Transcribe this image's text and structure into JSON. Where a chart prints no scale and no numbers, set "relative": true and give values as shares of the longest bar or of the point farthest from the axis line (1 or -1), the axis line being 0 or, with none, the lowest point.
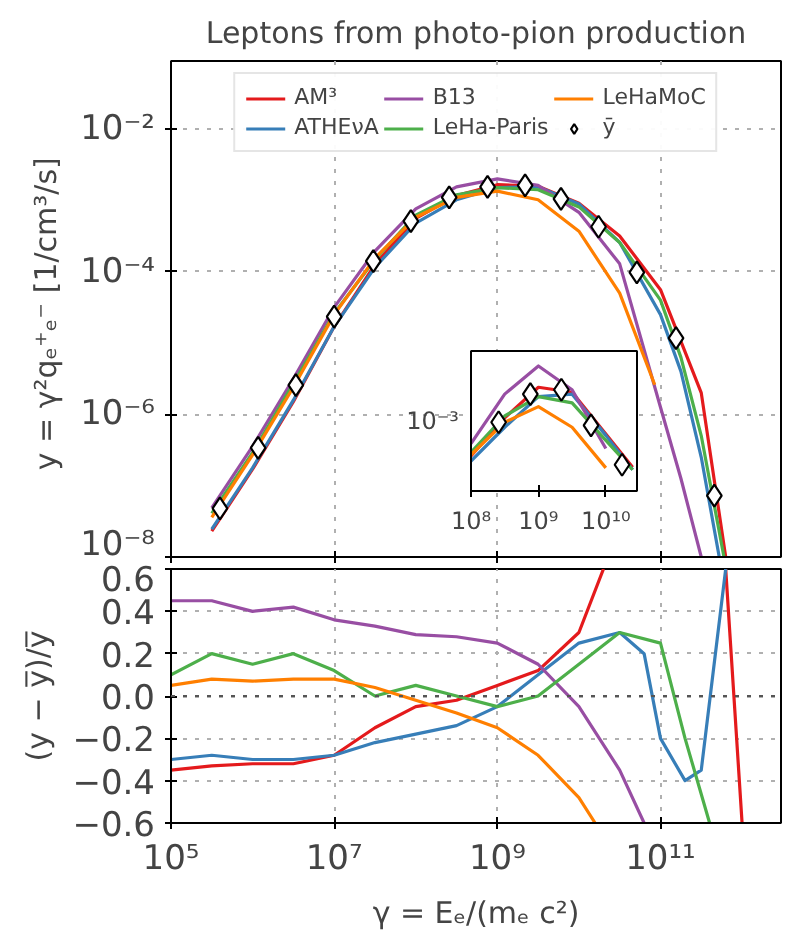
{
  "chart_data": [
    {
      "type": "line",
      "title": "Leptons from photo-pion production",
      "ylabel": "y = γ²qₑ⁺ₑ⁻  [1/cm³/s]",
      "log": "xy",
      "grid": true,
      "legend": "top",
      "tick_labels": "y",
      "xlim": [
        100000,
        3000000000000
      ],
      "ylim": [
        1e-08,
        0.09
      ],
      "xticks": [
        {
          "value": 100000,
          "label": null
        },
        {
          "value": 10000000,
          "label": null
        },
        {
          "value": 1000000000,
          "label": null
        },
        {
          "value": 100000000000,
          "label": null
        }
      ],
      "yticks": [
        {
          "value": 1e-08,
          "label": "10⁻⁸"
        },
        {
          "value": 1e-06,
          "label": "10⁻⁶"
        },
        {
          "value": 0.0001,
          "label": "10⁻⁴"
        },
        {
          "value": 0.01,
          "label": "10⁻²"
        }
      ],
      "series": [
        {
          "name": "AM³",
          "color": "#e41a1c",
          "x": [
            316000,
            1000000,
            3160000,
            10000000,
            31600000,
            100000000,
            316000000,
            1000000000,
            3160000000,
            10000000000,
            31600000000,
            100000000000,
            316000000000,
            630000000000
          ],
          "values": [
            2.3e-08,
            1.7e-07,
            1.5e-06,
            1.7e-05,
            0.000126,
            0.00056,
            0.00117,
            0.00166,
            0.00158,
            0.00091,
            0.000316,
            5.6e-05,
            2e-06,
            1e-08
          ]
        },
        {
          "name": "ATHEνA",
          "color": "#377eb8",
          "x": [
            316000,
            1000000,
            3160000,
            10000000,
            31600000,
            100000000,
            316000000,
            1000000000,
            3160000000,
            10000000000,
            31600000000,
            100000000000,
            178000000000,
            316000000000,
            525000000000
          ],
          "values": [
            2.45e-08,
            1.78e-07,
            1.58e-06,
            1.7e-05,
            0.000115,
            0.00048,
            0.00102,
            0.00151,
            0.00155,
            0.00089,
            0.000257,
            2.5e-05,
            4e-06,
            2.5e-07,
            1e-08
          ]
        },
        {
          "name": "B13",
          "color": "#984ea3",
          "x": [
            316000,
            1000000,
            3160000,
            10000000,
            31600000,
            100000000,
            316000000,
            1000000000,
            3160000000,
            10000000000,
            31600000000,
            100000000000,
            178000000000,
            316000000000
          ],
          "values": [
            4.9e-08,
            3.55e-07,
            3.16e-06,
            3.16e-05,
            0.000195,
            0.00076,
            0.00155,
            0.002,
            0.00162,
            0.00068,
            0.000129,
            1.26e-06,
            1.26e-07,
            1e-08
          ]
        },
        {
          "name": "LeHa-Paris",
          "color": "#4daf4a",
          "x": [
            316000,
            1000000,
            3160000,
            10000000,
            31600000,
            100000000,
            316000000,
            1000000000,
            3160000000,
            10000000000,
            31600000000,
            100000000000,
            178000000000,
            316000000000,
            600000000000
          ],
          "values": [
            4.1e-08,
            2.9e-07,
            2.7e-06,
            2.6e-05,
            0.000148,
            0.00062,
            0.0012,
            0.00151,
            0.00141,
            0.00081,
            0.000257,
            4e-05,
            6.3e-06,
            5e-07,
            1e-08
          ]
        },
        {
          "name": "LeHaMoC",
          "color": "#ff7f00",
          "x": [
            316000,
            1000000,
            3160000,
            10000000,
            31600000,
            100000000,
            316000000,
            1000000000,
            3160000000,
            10000000000,
            31600000000,
            85000000000
          ],
          "values": [
            3.6e-08,
            2.7e-07,
            2.4e-06,
            2.5e-05,
            0.000155,
            0.00058,
            0.0011,
            0.00135,
            0.00102,
            0.00037,
            5e-05,
            2.6e-06
          ]
        },
        {
          "name": "ȳ",
          "type": "scatter",
          "marker": "diamond",
          "color": "#000000",
          "x": [
            398000,
            1170000,
            3390000,
            10000000,
            30200000,
            87100000,
            257000000,
            759000000,
            2190000000,
            6030000000,
            17400000000,
            51300000000,
            155000000000,
            457000000000
          ],
          "values": [
            4.79e-08,
            3.39e-07,
            2.57e-06,
            2.34e-05,
            0.000141,
            0.000513,
            0.0011,
            0.00155,
            0.00162,
            0.00105,
            0.000427,
            9.77e-05,
            1.17e-05,
            7.24e-08
          ]
        }
      ]
    },
    {
      "type": "line",
      "log": "x",
      "relative": true,
      "xlim": [
        100000000,
        29000000000
      ],
      "annotations": [
        "10⁻³"
      ],
      "xticks": [
        {
          "value": 100000000,
          "label": "10⁸"
        },
        {
          "value": 1000000000,
          "label": "10⁹"
        },
        {
          "value": 10000000000,
          "label": "10¹⁰"
        }
      ],
      "series": [
        {
          "color": "#e41a1c",
          "x": [
            100000000,
            316000000,
            1000000000,
            3160000000,
            10000000000,
            25000000000
          ],
          "values": [
            0.28,
            0.585,
            0.83,
            0.79,
            0.455,
            0.19
          ]
        },
        {
          "color": "#377eb8",
          "x": [
            100000000,
            316000000,
            1000000000,
            3160000000,
            10000000000,
            25000000000
          ],
          "values": [
            0.24,
            0.51,
            0.755,
            0.775,
            0.445,
            0.17
          ]
        },
        {
          "color": "#984ea3",
          "x": [
            100000000,
            316000000,
            1000000000,
            3160000000,
            10000000000
          ],
          "values": [
            0.38,
            0.775,
            1.0,
            0.81,
            0.34
          ]
        },
        {
          "color": "#4daf4a",
          "x": [
            100000000,
            316000000,
            1000000000,
            3160000000,
            10000000000,
            25000000000
          ],
          "values": [
            0.31,
            0.6,
            0.755,
            0.705,
            0.405,
            0.17
          ]
        },
        {
          "color": "#ff7f00",
          "x": [
            100000000,
            316000000,
            1000000000,
            3160000000,
            10000000000
          ],
          "values": [
            0.29,
            0.55,
            0.675,
            0.51,
            0.185
          ]
        },
        {
          "type": "scatter",
          "marker": "diamond",
          "color": "#000000",
          "x": [
            257000000,
            759000000,
            2190000000,
            6030000000,
            17400000000
          ],
          "values": [
            0.55,
            0.775,
            0.81,
            0.525,
            0.21
          ]
        }
      ]
    },
    {
      "type": "line",
      "xlabel": "γ = Eₑ/(mₑ c²)",
      "ylabel": "(y − y̅)/y̅",
      "log": "x",
      "grid": true,
      "xlim": [
        100000,
        3000000000000
      ],
      "ylim": [
        -0.6,
        0.6
      ],
      "xticks": [
        {
          "value": 100000,
          "label": "10⁵"
        },
        {
          "value": 10000000,
          "label": "10⁷"
        },
        {
          "value": 1000000000,
          "label": "10⁹"
        },
        {
          "value": 100000000000,
          "label": "10¹¹"
        }
      ],
      "yticks": [
        {
          "value": -0.6,
          "label": "−0.6"
        },
        {
          "value": -0.4,
          "label": "−0.4"
        },
        {
          "value": -0.2,
          "label": "−0.2"
        },
        {
          "value": 0,
          "label": "0.0"
        },
        {
          "value": 0.2,
          "label": "0.2"
        },
        {
          "value": 0.4,
          "label": "0.4"
        },
        {
          "value": 0.6,
          "label": "0.6"
        }
      ],
      "ref_lines": [
        {
          "axis": "y",
          "value": 0,
          "color": "#555555",
          "line_style": "dotted"
        }
      ],
      "series": [
        {
          "color": "#e41a1c",
          "x": [
            100000,
            316000,
            1000000,
            3160000,
            10000000,
            31600000,
            100000000,
            316000000,
            1000000000,
            3160000000,
            10000000000,
            20000000000,
            300000000000,
            630000000000,
            1000000000000
          ],
          "values": [
            -0.35,
            -0.33,
            -0.32,
            -0.32,
            -0.28,
            -0.15,
            -0.05,
            -0.02,
            0.05,
            0.12,
            0.3,
            0.6,
            null,
            0.6,
            -0.6
          ]
        },
        {
          "color": "#377eb8",
          "x": [
            100000,
            316000,
            1000000,
            3160000,
            10000000,
            31600000,
            100000000,
            316000000,
            1000000000,
            3160000000,
            10000000000,
            31600000000,
            63000000000,
            100000000000,
            200000000000,
            316000000000,
            630000000000
          ],
          "values": [
            -0.3,
            -0.28,
            -0.3,
            -0.3,
            -0.28,
            -0.22,
            -0.18,
            -0.14,
            -0.05,
            0.1,
            0.25,
            0.3,
            0.2,
            -0.2,
            -0.4,
            -0.35,
            0.6
          ]
        },
        {
          "color": "#984ea3",
          "x": [
            100000,
            316000,
            1000000,
            3160000,
            10000000,
            31600000,
            100000000,
            316000000,
            1000000000,
            3160000000,
            10000000000,
            31600000000,
            63000000000
          ],
          "values": [
            0.45,
            0.45,
            0.4,
            0.42,
            0.36,
            0.33,
            0.29,
            0.28,
            0.25,
            0.15,
            -0.05,
            -0.35,
            -0.6
          ]
        },
        {
          "color": "#4daf4a",
          "x": [
            100000,
            316000,
            1000000,
            3160000,
            10000000,
            31600000,
            100000000,
            316000000,
            1000000000,
            3160000000,
            10000000000,
            31600000000,
            100000000000,
            200000000000,
            400000000000
          ],
          "values": [
            0.1,
            0.2,
            0.15,
            0.2,
            0.12,
            0.0,
            0.05,
            0.0,
            -0.05,
            0.0,
            0.15,
            0.3,
            0.25,
            -0.2,
            -0.6
          ]
        },
        {
          "color": "#ff7f00",
          "x": [
            100000,
            316000,
            1000000,
            3160000,
            10000000,
            31600000,
            100000000,
            316000000,
            1000000000,
            3160000000,
            10000000000,
            15800000000
          ],
          "values": [
            0.05,
            0.08,
            0.07,
            0.08,
            0.08,
            0.04,
            -0.02,
            -0.08,
            -0.15,
            -0.28,
            -0.48,
            -0.6
          ]
        }
      ]
    }
  ]
}
